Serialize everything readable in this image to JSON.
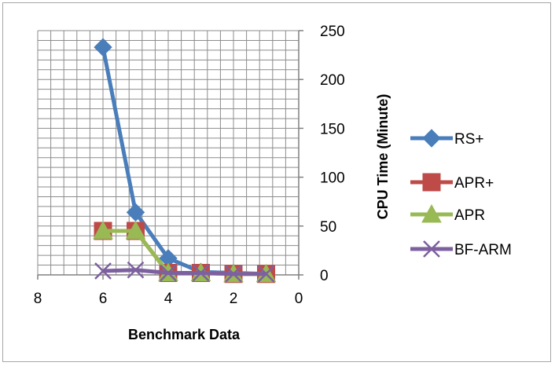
{
  "chart_data": {
    "type": "line",
    "xlabel": "Benchmark Data",
    "ylabel": "CPU Time (Minute)",
    "xlim": [
      0,
      8
    ],
    "ylim": [
      0,
      250
    ],
    "x_ticks": [
      8,
      6,
      4,
      2,
      0
    ],
    "y_ticks": [
      0,
      50,
      100,
      150,
      200,
      250
    ],
    "x_reversed": true,
    "grid": true,
    "legend_position": "right",
    "series": [
      {
        "name": "RS+",
        "color": "#4a7ebb",
        "marker": "diamond",
        "x": [
          6,
          5,
          4,
          3,
          2,
          1
        ],
        "values": [
          233,
          64,
          17,
          3,
          2,
          1
        ]
      },
      {
        "name": "APR+",
        "color": "#be4b48",
        "marker": "square",
        "x": [
          6,
          5,
          4,
          3,
          2,
          1
        ],
        "values": [
          45,
          45,
          2,
          2,
          1,
          1
        ]
      },
      {
        "name": "APR",
        "color": "#98b954",
        "marker": "triangle",
        "x": [
          6,
          5,
          4,
          3,
          2,
          1
        ],
        "values": [
          45,
          45,
          2,
          2,
          1,
          1
        ]
      },
      {
        "name": "BF-ARM",
        "color": "#7d60a0",
        "marker": "x",
        "x": [
          6,
          5,
          4,
          3,
          2,
          1
        ],
        "values": [
          4,
          5,
          2,
          2,
          1,
          1
        ]
      }
    ]
  }
}
